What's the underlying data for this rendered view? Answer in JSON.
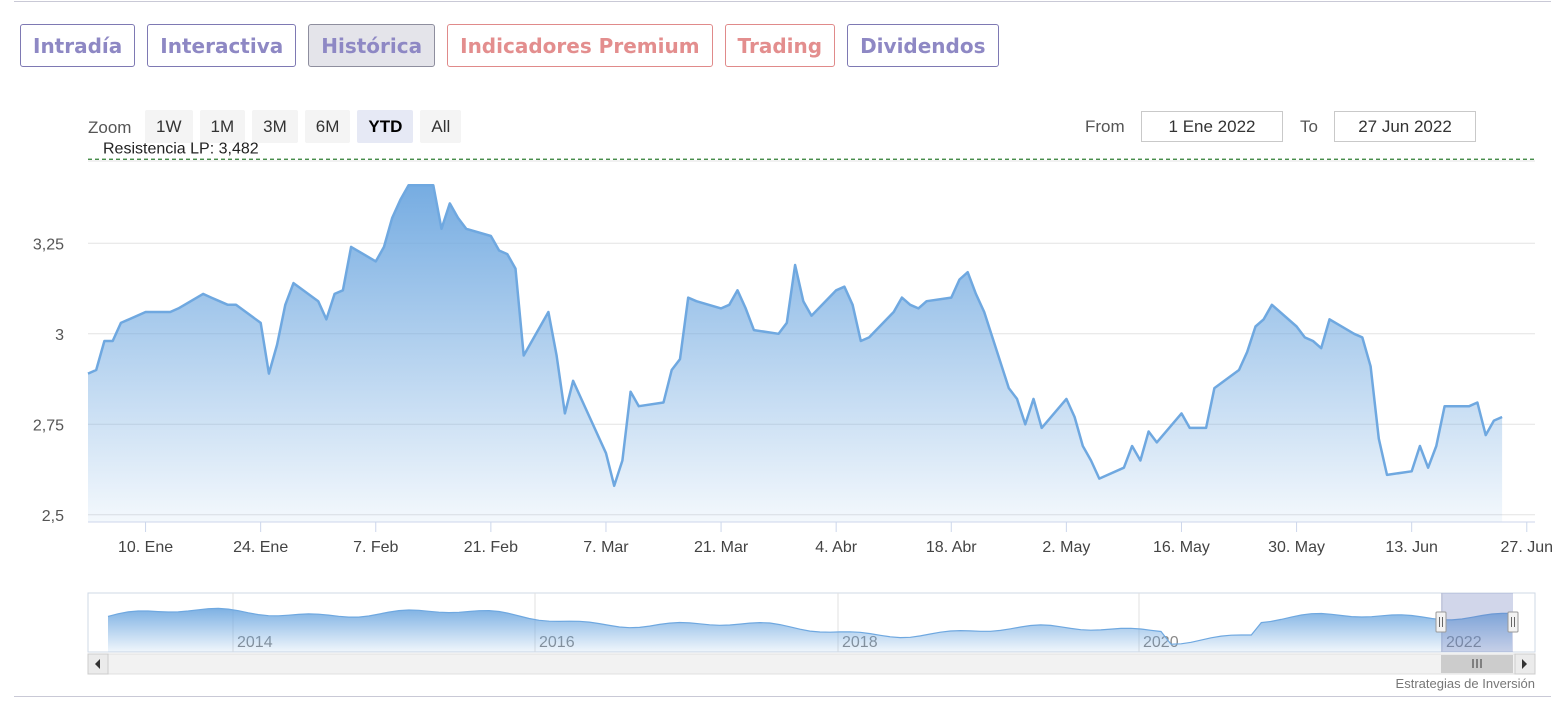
{
  "tabs": [
    {
      "label": "Intradía",
      "style": "normal"
    },
    {
      "label": "Interactiva",
      "style": "normal"
    },
    {
      "label": "Histórica",
      "style": "active"
    },
    {
      "label": "Indicadores Premium",
      "style": "premium"
    },
    {
      "label": "Trading",
      "style": "premium"
    },
    {
      "label": "Dividendos",
      "style": "normal"
    }
  ],
  "range_selector": {
    "zoom_label": "Zoom",
    "buttons": [
      "1W",
      "1M",
      "3M",
      "6M",
      "YTD",
      "All"
    ],
    "selected": "YTD",
    "from_label": "From",
    "from_value": "1 Ene 2022",
    "to_label": "To",
    "to_value": "27 Jun 2022"
  },
  "credits": "Estrategias de Inversión",
  "colors": {
    "line": "#6fa8e0",
    "resistance": "#2e7d32",
    "tab_text": "#8e88c4",
    "premium_text": "#e38e8e"
  },
  "chart_data": {
    "type": "area",
    "title": "",
    "xlabel": "",
    "ylabel": "",
    "x_start": "2022-01-03",
    "x_end": "2022-06-28",
    "ylim": [
      2.48,
      3.48
    ],
    "y_ticks": [
      2.5,
      2.75,
      3,
      3.25
    ],
    "y_tick_labels": [
      "2,5",
      "2,75",
      "3",
      "3,25"
    ],
    "x_ticks": [
      {
        "date": "2022-01-10",
        "label": "10. Ene"
      },
      {
        "date": "2022-01-24",
        "label": "24. Ene"
      },
      {
        "date": "2022-02-07",
        "label": "7. Feb"
      },
      {
        "date": "2022-02-21",
        "label": "21. Feb"
      },
      {
        "date": "2022-03-07",
        "label": "7. Mar"
      },
      {
        "date": "2022-03-21",
        "label": "21. Mar"
      },
      {
        "date": "2022-04-04",
        "label": "4. Abr"
      },
      {
        "date": "2022-04-18",
        "label": "18. Abr"
      },
      {
        "date": "2022-05-02",
        "label": "2. May"
      },
      {
        "date": "2022-05-16",
        "label": "16. May"
      },
      {
        "date": "2022-05-30",
        "label": "30. May"
      },
      {
        "date": "2022-06-13",
        "label": "13. Jun"
      },
      {
        "date": "2022-06-27",
        "label": "27. Jun"
      }
    ],
    "grid": true,
    "resistance": {
      "label": "Resistencia LP: 3,482",
      "value": 3.482
    },
    "series": [
      {
        "values": [
          [
            "2022-01-03",
            2.89
          ],
          [
            "2022-01-04",
            2.9
          ],
          [
            "2022-01-05",
            2.98
          ],
          [
            "2022-01-06",
            2.98
          ],
          [
            "2022-01-07",
            3.03
          ],
          [
            "2022-01-10",
            3.06
          ],
          [
            "2022-01-11",
            3.06
          ],
          [
            "2022-01-12",
            3.06
          ],
          [
            "2022-01-13",
            3.06
          ],
          [
            "2022-01-14",
            3.07
          ],
          [
            "2022-01-17",
            3.11
          ],
          [
            "2022-01-18",
            3.1
          ],
          [
            "2022-01-19",
            3.09
          ],
          [
            "2022-01-20",
            3.08
          ],
          [
            "2022-01-21",
            3.08
          ],
          [
            "2022-01-24",
            3.03
          ],
          [
            "2022-01-25",
            2.89
          ],
          [
            "2022-01-26",
            2.97
          ],
          [
            "2022-01-27",
            3.08
          ],
          [
            "2022-01-28",
            3.14
          ],
          [
            "2022-01-31",
            3.09
          ],
          [
            "2022-02-01",
            3.04
          ],
          [
            "2022-02-02",
            3.11
          ],
          [
            "2022-02-03",
            3.12
          ],
          [
            "2022-02-04",
            3.24
          ],
          [
            "2022-02-07",
            3.2
          ],
          [
            "2022-02-08",
            3.24
          ],
          [
            "2022-02-09",
            3.32
          ],
          [
            "2022-02-10",
            3.37
          ],
          [
            "2022-02-11",
            3.41
          ],
          [
            "2022-02-14",
            3.41
          ],
          [
            "2022-02-15",
            3.29
          ],
          [
            "2022-02-16",
            3.36
          ],
          [
            "2022-02-17",
            3.32
          ],
          [
            "2022-02-18",
            3.29
          ],
          [
            "2022-02-21",
            3.27
          ],
          [
            "2022-02-22",
            3.23
          ],
          [
            "2022-02-23",
            3.22
          ],
          [
            "2022-02-24",
            3.18
          ],
          [
            "2022-02-25",
            2.94
          ],
          [
            "2022-02-28",
            3.06
          ],
          [
            "2022-03-01",
            2.94
          ],
          [
            "2022-03-02",
            2.78
          ],
          [
            "2022-03-03",
            2.87
          ],
          [
            "2022-03-04",
            2.82
          ],
          [
            "2022-03-07",
            2.67
          ],
          [
            "2022-03-08",
            2.58
          ],
          [
            "2022-03-09",
            2.65
          ],
          [
            "2022-03-10",
            2.84
          ],
          [
            "2022-03-11",
            2.8
          ],
          [
            "2022-03-14",
            2.81
          ],
          [
            "2022-03-15",
            2.9
          ],
          [
            "2022-03-16",
            2.93
          ],
          [
            "2022-03-17",
            3.1
          ],
          [
            "2022-03-18",
            3.09
          ],
          [
            "2022-03-21",
            3.07
          ],
          [
            "2022-03-22",
            3.08
          ],
          [
            "2022-03-23",
            3.12
          ],
          [
            "2022-03-24",
            3.07
          ],
          [
            "2022-03-25",
            3.01
          ],
          [
            "2022-03-28",
            3.0
          ],
          [
            "2022-03-29",
            3.03
          ],
          [
            "2022-03-30",
            3.19
          ],
          [
            "2022-03-31",
            3.09
          ],
          [
            "2022-04-01",
            3.05
          ],
          [
            "2022-04-04",
            3.12
          ],
          [
            "2022-04-05",
            3.13
          ],
          [
            "2022-04-06",
            3.08
          ],
          [
            "2022-04-07",
            2.98
          ],
          [
            "2022-04-08",
            2.99
          ],
          [
            "2022-04-11",
            3.06
          ],
          [
            "2022-04-12",
            3.1
          ],
          [
            "2022-04-13",
            3.08
          ],
          [
            "2022-04-14",
            3.07
          ],
          [
            "2022-04-15",
            3.09
          ],
          [
            "2022-04-18",
            3.1
          ],
          [
            "2022-04-19",
            3.15
          ],
          [
            "2022-04-20",
            3.17
          ],
          [
            "2022-04-21",
            3.11
          ],
          [
            "2022-04-22",
            3.06
          ],
          [
            "2022-04-25",
            2.85
          ],
          [
            "2022-04-26",
            2.82
          ],
          [
            "2022-04-27",
            2.75
          ],
          [
            "2022-04-28",
            2.82
          ],
          [
            "2022-04-29",
            2.74
          ],
          [
            "2022-05-02",
            2.82
          ],
          [
            "2022-05-03",
            2.77
          ],
          [
            "2022-05-04",
            2.69
          ],
          [
            "2022-05-05",
            2.65
          ],
          [
            "2022-05-06",
            2.6
          ],
          [
            "2022-05-09",
            2.63
          ],
          [
            "2022-05-10",
            2.69
          ],
          [
            "2022-05-11",
            2.65
          ],
          [
            "2022-05-12",
            2.73
          ],
          [
            "2022-05-13",
            2.7
          ],
          [
            "2022-05-16",
            2.78
          ],
          [
            "2022-05-17",
            2.74
          ],
          [
            "2022-05-18",
            2.74
          ],
          [
            "2022-05-19",
            2.74
          ],
          [
            "2022-05-20",
            2.85
          ],
          [
            "2022-05-23",
            2.9
          ],
          [
            "2022-05-24",
            2.95
          ],
          [
            "2022-05-25",
            3.02
          ],
          [
            "2022-05-26",
            3.04
          ],
          [
            "2022-05-27",
            3.08
          ],
          [
            "2022-05-30",
            3.02
          ],
          [
            "2022-05-31",
            2.99
          ],
          [
            "2022-06-01",
            2.98
          ],
          [
            "2022-06-02",
            2.96
          ],
          [
            "2022-06-03",
            3.04
          ],
          [
            "2022-06-06",
            3.0
          ],
          [
            "2022-06-07",
            2.99
          ],
          [
            "2022-06-08",
            2.91
          ],
          [
            "2022-06-09",
            2.71
          ],
          [
            "2022-06-10",
            2.61
          ],
          [
            "2022-06-13",
            2.62
          ],
          [
            "2022-06-14",
            2.69
          ],
          [
            "2022-06-15",
            2.63
          ],
          [
            "2022-06-16",
            2.69
          ],
          [
            "2022-06-17",
            2.8
          ],
          [
            "2022-06-20",
            2.8
          ],
          [
            "2022-06-21",
            2.81
          ],
          [
            "2022-06-22",
            2.72
          ],
          [
            "2022-06-23",
            2.76
          ],
          [
            "2022-06-24",
            2.77
          ]
        ]
      }
    ],
    "navigator": {
      "x_labels": [
        "2014",
        "2016",
        "2018",
        "2020",
        "2022"
      ],
      "selection_start": "2022-01-01",
      "selection_end": "2022-06-27"
    }
  }
}
